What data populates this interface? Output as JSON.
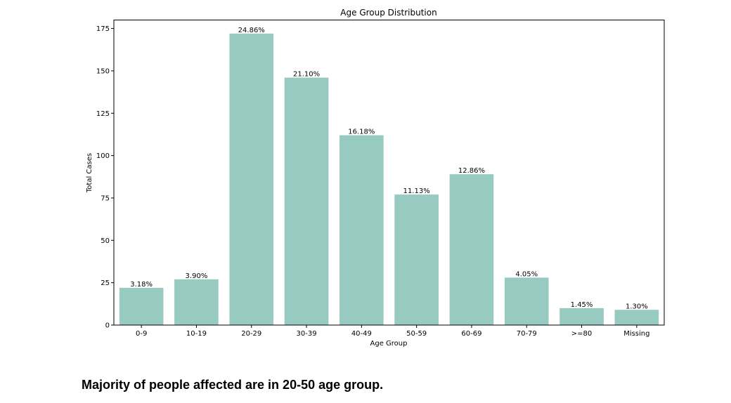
{
  "chart_data": {
    "type": "bar",
    "title": "Age Group Distribution",
    "xlabel": "Age Group",
    "ylabel": "Total Cases",
    "categories": [
      "0-9",
      "10-19",
      "20-29",
      "30-39",
      "40-49",
      "50-59",
      "60-69",
      "70-79",
      ">=80",
      "Missing"
    ],
    "values": [
      22,
      27,
      172,
      146,
      112,
      77,
      89,
      28,
      10,
      9
    ],
    "data_labels": [
      "3.18%",
      "3.90%",
      "24.86%",
      "21.10%",
      "16.18%",
      "11.13%",
      "12.86%",
      "4.05%",
      "1.45%",
      "1.30%"
    ],
    "ylim": [
      0,
      180
    ],
    "yticks": [
      0,
      25,
      50,
      75,
      100,
      125,
      150,
      175
    ],
    "grid": false,
    "legend": false,
    "bar_color": "#97cac0"
  },
  "caption": "Majority of people affected are in 20-50 age group."
}
